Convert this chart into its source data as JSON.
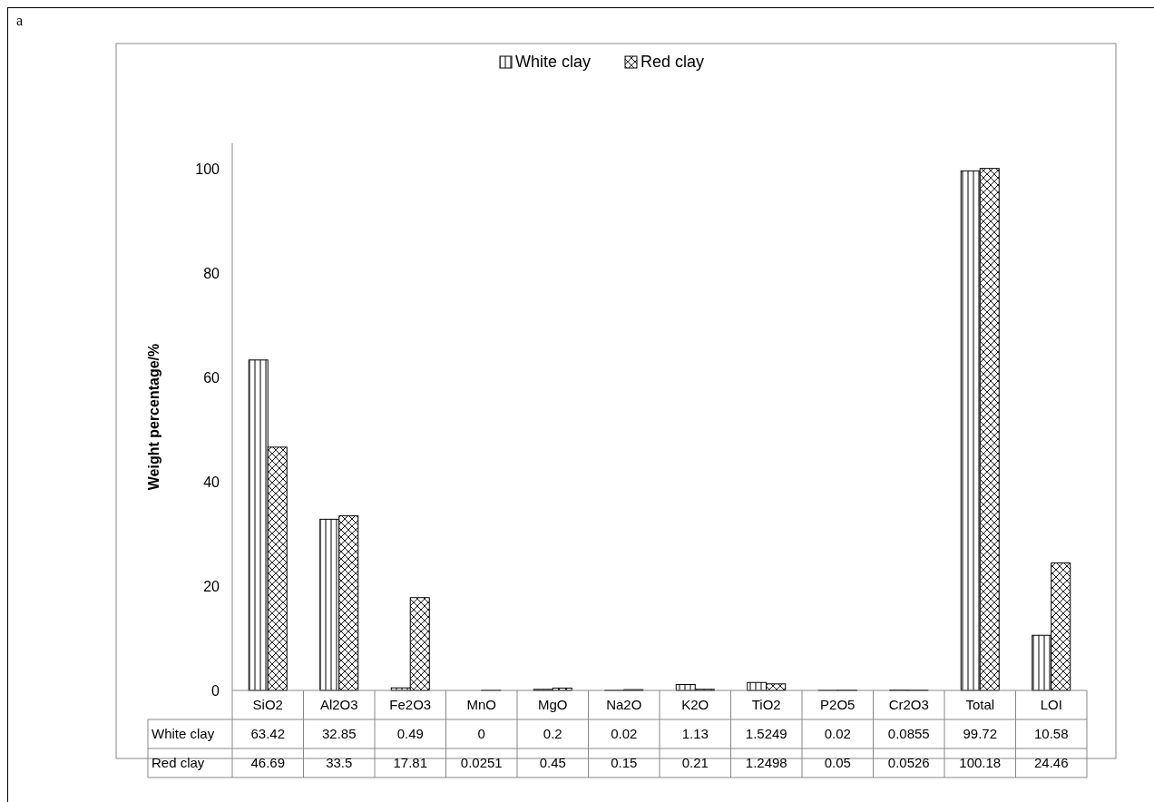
{
  "chart_data": {
    "type": "bar",
    "ylabel": "Weight percentage/%",
    "annotations": [
      "a"
    ],
    "categories": [
      "SiO2",
      "Al2O3",
      "Fe2O3",
      "MnO",
      "MgO",
      "Na2O",
      "K2O",
      "TiO2",
      "P2O5",
      "Cr2O3",
      "Total",
      "LOI"
    ],
    "series": [
      {
        "name": "White clay",
        "color": "#000000",
        "values": [
          63.42,
          32.85,
          0.49,
          0,
          0.2,
          0.02,
          1.13,
          1.5249,
          0.02,
          0.0855,
          99.72,
          10.58
        ]
      },
      {
        "name": "Red clay",
        "color": "#000000",
        "values": [
          46.69,
          33.5,
          17.81,
          0.0251,
          0.45,
          0.15,
          0.21,
          1.2498,
          0.05,
          0.0526,
          100.18,
          24.46
        ]
      }
    ],
    "ylim": [
      0,
      105
    ],
    "yticks": [
      0,
      20,
      40,
      60,
      80,
      100
    ],
    "grid": false,
    "legend": "top",
    "data_labels": true
  }
}
